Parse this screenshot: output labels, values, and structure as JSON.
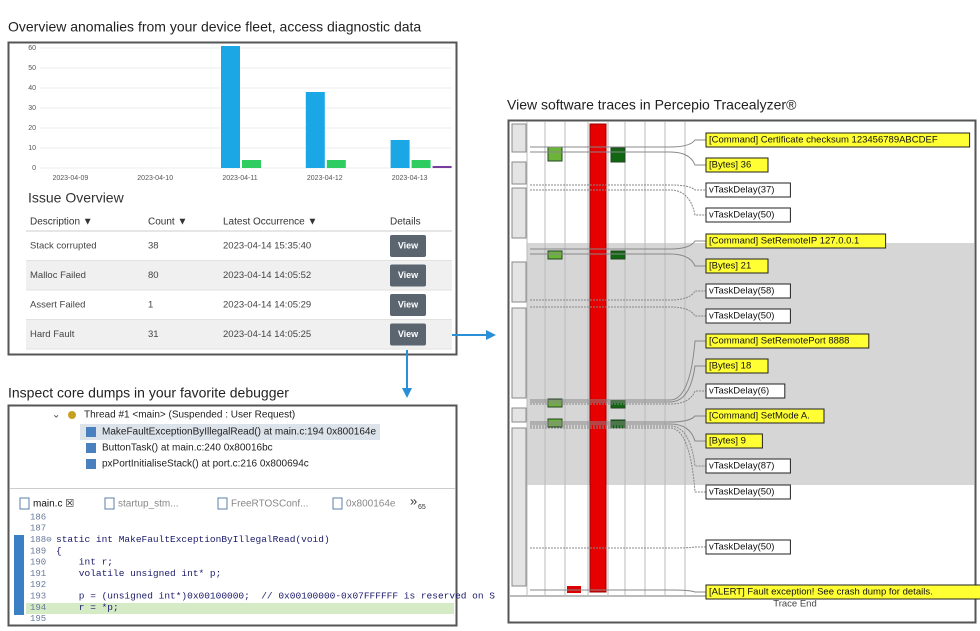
{
  "captions": {
    "overview": "Overview anomalies from your device fleet, access diagnostic data",
    "traces": "View software traces in Percepio Tracealyzer®",
    "debugger": "Inspect core dumps in your favorite debugger"
  },
  "chart_data": {
    "type": "bar",
    "categories": [
      "2023-04-09",
      "2023-04-10",
      "2023-04-11",
      "2023-04-12",
      "2023-04-13"
    ],
    "series": [
      {
        "color": "#1ba6e6",
        "values": [
          0,
          0,
          61,
          38,
          14
        ]
      },
      {
        "color": "#2fcc62",
        "values": [
          0,
          0,
          4,
          4,
          4
        ]
      },
      {
        "color": "#7a3c9e",
        "values": [
          0,
          0,
          0,
          0,
          1
        ]
      }
    ],
    "ylim": [
      0,
      60
    ],
    "yticks": [
      0,
      10,
      20,
      30,
      40,
      50,
      60
    ],
    "grid": true
  },
  "table": {
    "title": "Issue Overview",
    "headers": [
      "Description ▼",
      "Count ▼",
      "Latest Occurrence ▼",
      "Details"
    ],
    "rows": [
      [
        "Stack corrupted",
        "38",
        "2023-04-14 15:35:40",
        "View"
      ],
      [
        "Malloc Failed",
        "80",
        "2023-04-14 14:05:52",
        "View"
      ],
      [
        "Assert Failed",
        "1",
        "2023-04-14 14:05:29",
        "View"
      ],
      [
        "Hard Fault",
        "31",
        "2023-04-14 14:05:25",
        "View"
      ]
    ]
  },
  "debugger": {
    "thread": "Thread #1 <main> (Suspended : User Request)",
    "frames": [
      "MakeFaultExceptionByIllegalRead() at main.c:194 0x800164e",
      "ButtonTask() at main.c:240 0x80016bc",
      "pxPortInitialiseStack() at port.c:216 0x800694c"
    ],
    "tabs": [
      "main.c ☒",
      "startup_stm...",
      "FreeRTOSConf...",
      "0x800164e"
    ],
    "tab_overflow": "»",
    "tab_overflow_count": "65",
    "lines": [
      {
        "num": "186"
      },
      {
        "num": "187"
      },
      {
        "num": "188⊖",
        "code": "static int MakeFaultExceptionByIllegalRead(void)"
      },
      {
        "num": "189",
        "code": "{"
      },
      {
        "num": "190",
        "code": "    int r;"
      },
      {
        "num": "191",
        "code": "    volatile unsigned int* p;"
      },
      {
        "num": "192"
      },
      {
        "num": "193",
        "code": "    p = (unsigned int*)0x00100000;  // 0x00100000-0x07FFFFFF is reserved on S"
      },
      {
        "num": "194",
        "code": "    r = *p;"
      },
      {
        "num": "195"
      }
    ]
  },
  "trace": {
    "events": [
      {
        "label": "[Command] Certificate checksum 123456789ABCDEF",
        "highlight": true
      },
      {
        "label": "[Bytes] 36",
        "highlight": true
      },
      {
        "label": "vTaskDelay(37)",
        "highlight": false
      },
      {
        "label": "vTaskDelay(50)",
        "highlight": false
      },
      {
        "label": "[Command] SetRemoteIP 127.0.0.1",
        "highlight": true
      },
      {
        "label": "[Bytes] 21",
        "highlight": true
      },
      {
        "label": "vTaskDelay(58)",
        "highlight": false
      },
      {
        "label": "vTaskDelay(50)",
        "highlight": false
      },
      {
        "label": "[Command] SetRemotePort 8888",
        "highlight": true
      },
      {
        "label": "[Bytes] 18",
        "highlight": true
      },
      {
        "label": "vTaskDelay(6)",
        "highlight": false
      },
      {
        "label": "[Command] SetMode A.",
        "highlight": true
      },
      {
        "label": "[Bytes] 9",
        "highlight": true
      },
      {
        "label": "vTaskDelay(87)",
        "highlight": false
      },
      {
        "label": "vTaskDelay(50)",
        "highlight": false
      },
      {
        "label": "vTaskDelay(50)",
        "highlight": false
      },
      {
        "label": "[ALERT] Fault exception! See crash dump for details.",
        "highlight": true
      }
    ],
    "end_label": "Trace End"
  }
}
